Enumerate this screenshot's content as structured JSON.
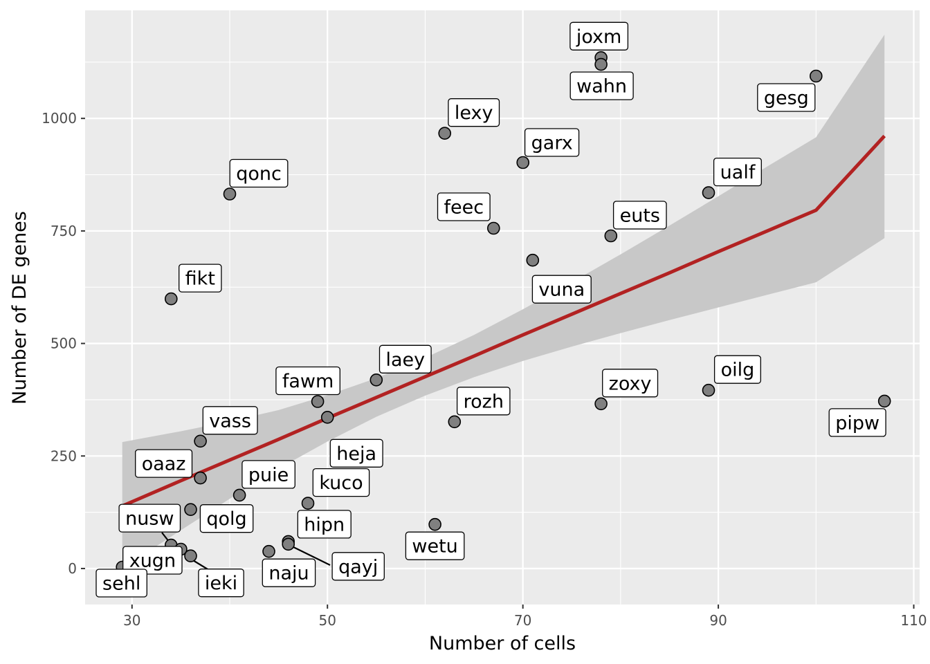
{
  "chart_data": {
    "type": "scatter",
    "title": "",
    "xlabel": "Number of cells",
    "ylabel": "Number of DE genes",
    "xlim": [
      25.2,
      110.6
    ],
    "ylim": [
      -80,
      1240
    ],
    "x_ticks": [
      30,
      50,
      70,
      90,
      110
    ],
    "y_ticks": [
      0,
      250,
      500,
      750,
      1000
    ],
    "grid": true,
    "legend": "none",
    "colors": {
      "panel": "#ebebeb",
      "grid": "#ffffff",
      "point_fill": "#808080",
      "point_stroke": "#000000",
      "fit_line": "#b22222",
      "ribbon": "#c8c8c8"
    },
    "points": [
      {
        "label": "joxm",
        "x": 78,
        "y": 1135
      },
      {
        "label": "wahn",
        "x": 78,
        "y": 1120
      },
      {
        "label": "gesg",
        "x": 100,
        "y": 1094
      },
      {
        "label": "lexy",
        "x": 62,
        "y": 967
      },
      {
        "label": "garx",
        "x": 70,
        "y": 902
      },
      {
        "label": "qonc",
        "x": 40,
        "y": 832
      },
      {
        "label": "ualf",
        "x": 89,
        "y": 835
      },
      {
        "label": "feec",
        "x": 67,
        "y": 756
      },
      {
        "label": "euts",
        "x": 79,
        "y": 739
      },
      {
        "label": "vuna",
        "x": 71,
        "y": 685
      },
      {
        "label": "fikt",
        "x": 34,
        "y": 599
      },
      {
        "label": "laey",
        "x": 55,
        "y": 419
      },
      {
        "label": "fawm",
        "x": 49,
        "y": 371
      },
      {
        "label": "oilg",
        "x": 89,
        "y": 396
      },
      {
        "label": "zoxy",
        "x": 78,
        "y": 366
      },
      {
        "label": "pipw",
        "x": 107,
        "y": 372
      },
      {
        "label": "heja",
        "x": 50,
        "y": 336
      },
      {
        "label": "rozh",
        "x": 63,
        "y": 326
      },
      {
        "label": "vass",
        "x": 37,
        "y": 283
      },
      {
        "label": "oaaz",
        "x": 37,
        "y": 201
      },
      {
        "label": "puie",
        "x": 41,
        "y": 163
      },
      {
        "label": "kuco",
        "x": 48,
        "y": 145
      },
      {
        "label": "qolg",
        "x": 36,
        "y": 131
      },
      {
        "label": "wetu",
        "x": 61,
        "y": 98
      },
      {
        "label": "hipn",
        "x": 46,
        "y": 60
      },
      {
        "label": "qayj",
        "x": 46,
        "y": 54
      },
      {
        "label": "nusw",
        "x": 34,
        "y": 52
      },
      {
        "label": "xugn",
        "x": 35,
        "y": 43
      },
      {
        "label": "naju",
        "x": 44,
        "y": 38
      },
      {
        "label": "ieki",
        "x": 36,
        "y": 28
      },
      {
        "label": "sehl",
        "x": 29,
        "y": 3
      }
    ],
    "fit": {
      "x": [
        29,
        35,
        40,
        45,
        50,
        55,
        60,
        65,
        70,
        75,
        80,
        85,
        90,
        95,
        100,
        107
      ],
      "y": [
        139,
        195,
        241,
        287,
        334,
        380,
        426,
        472,
        519,
        565,
        611,
        657,
        704,
        750,
        796,
        961
      ],
      "lower": [
        0,
        85,
        155,
        222,
        282,
        337,
        384,
        425,
        461,
        493,
        523,
        552,
        580,
        608,
        636,
        734
      ],
      "upper": [
        281,
        305,
        327,
        352,
        385,
        423,
        468,
        519,
        576,
        636,
        698,
        762,
        827,
        893,
        958,
        1186
      ]
    }
  }
}
